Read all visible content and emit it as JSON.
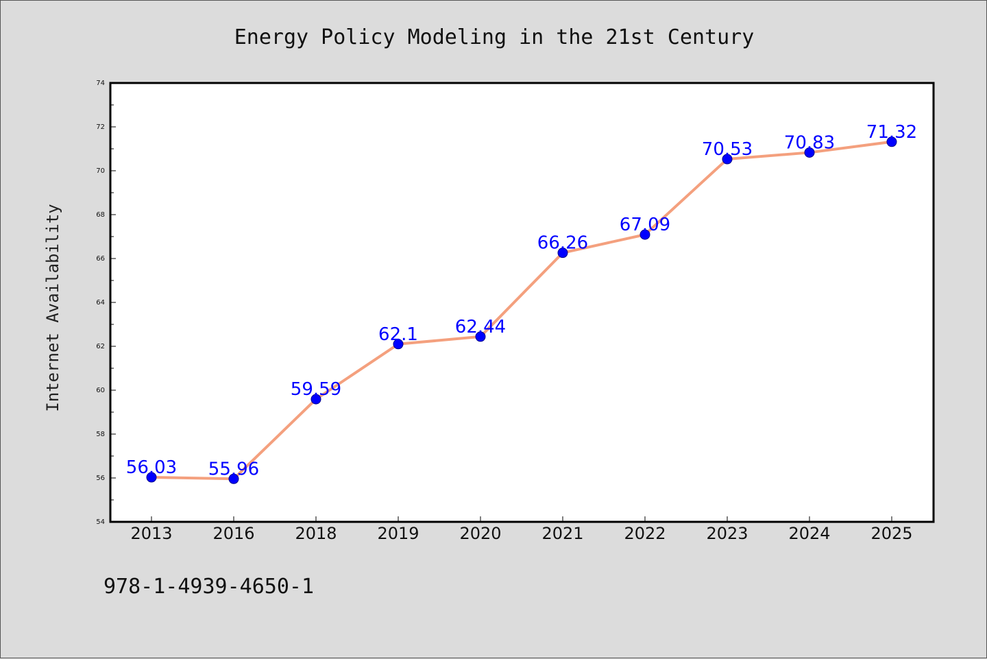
{
  "chart_data": {
    "type": "line",
    "title": "Energy Policy Modeling in the 21st Century",
    "xlabel": "",
    "ylabel": "Internet Availability",
    "categories": [
      "2013",
      "2016",
      "2018",
      "2019",
      "2020",
      "2021",
      "2022",
      "2023",
      "2024",
      "2025"
    ],
    "series": [
      {
        "values": [
          56.03,
          55.96,
          59.59,
          62.1,
          62.44,
          66.26,
          67.09,
          70.53,
          70.83,
          71.32
        ],
        "data_labels": [
          "56.03",
          "55.96",
          "59.59",
          "62.1",
          "62.44",
          "66.26",
          "67.09",
          "70.53",
          "70.83",
          "71.32"
        ],
        "line_color": "#f4a07e",
        "marker_color": "#0000ff"
      }
    ],
    "ylim": [
      54,
      74
    ],
    "yticks": [
      "54",
      "56",
      "58",
      "60",
      "62",
      "64",
      "66",
      "68",
      "70",
      "72",
      "74"
    ],
    "grid": false,
    "legend": "none"
  },
  "footnote": "978-1-4939-4650-1"
}
